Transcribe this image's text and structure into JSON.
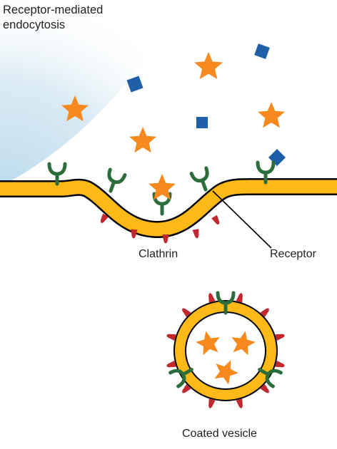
{
  "title": "Receptor-mediated\nendocytosis",
  "labels": {
    "clathrin": "Clathrin",
    "receptor": "Receptor",
    "vesicle": "Coated vesicle"
  },
  "colors": {
    "membrane": "#fcb918",
    "outline": "#000000",
    "receptor": "#2c6e3b",
    "clathrin": "#c1272d",
    "ligand_star": "#f7891f",
    "square": "#1f5ea8",
    "fluid": "#b9d9ea"
  },
  "icons": {
    "ligand": "star-icon",
    "molecule": "square-icon",
    "receptor": "receptor-icon",
    "clathrin": "clathrin-icon"
  }
}
